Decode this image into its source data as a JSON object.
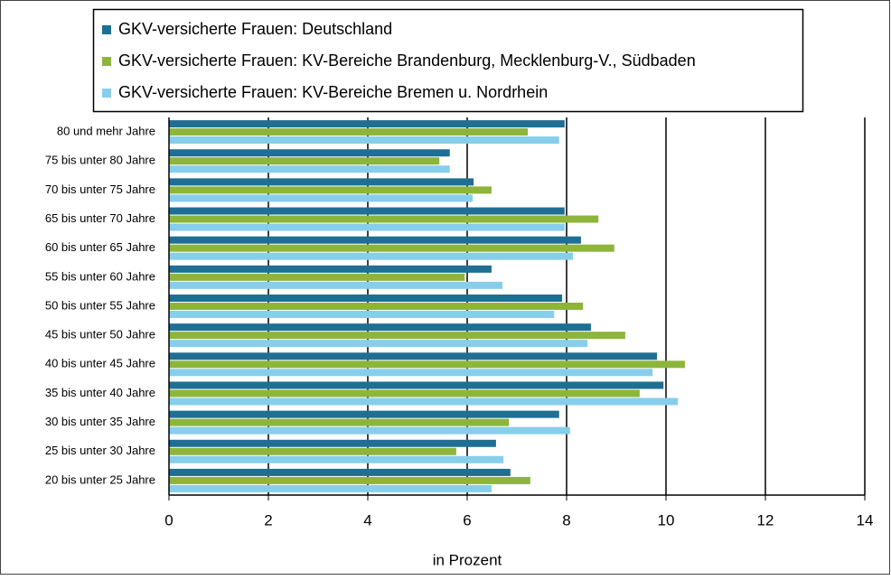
{
  "chart_data": {
    "type": "bar",
    "orientation": "horizontal",
    "x_label": "in Prozent",
    "categories": [
      "80 und mehr Jahre",
      "75 bis unter 80 Jahre",
      "70 bis unter 75 Jahre",
      "65 bis unter 70 Jahre",
      "60 bis unter 65 Jahre",
      "55 bis unter 60 Jahre",
      "50 bis unter 55 Jahre",
      "45 bis unter 50 Jahre",
      "40 bis unter 45 Jahre",
      "35 bis unter 40 Jahre",
      "30 bis unter 35 Jahre",
      "25 bis unter 30 Jahre",
      "20 bis unter 25 Jahre"
    ],
    "series": [
      {
        "name": "GKV-versicherte Frauen: Deutschland",
        "color": "#1f6f94",
        "values": [
          7.96,
          5.65,
          6.13,
          7.96,
          8.29,
          6.49,
          7.91,
          8.49,
          9.82,
          9.95,
          7.85,
          6.58,
          6.87
        ]
      },
      {
        "name": "GKV-versicherte Frauen: KV-Bereiche Brandenburg, Mecklenburg-V., Südbaden",
        "color": "#8db53c",
        "values": [
          7.22,
          5.44,
          6.49,
          8.64,
          8.96,
          5.95,
          8.33,
          9.18,
          10.38,
          9.47,
          6.84,
          5.78,
          7.27
        ]
      },
      {
        "name": "GKV-versicherte Frauen: KV-Bereiche Bremen u. Nordrhein",
        "color": "#87ceeb",
        "values": [
          7.85,
          5.65,
          6.11,
          7.96,
          8.13,
          6.71,
          7.75,
          8.42,
          9.73,
          10.24,
          8.07,
          6.73,
          6.49
        ]
      }
    ],
    "xlim": [
      0,
      14
    ],
    "xticks": [
      0,
      2,
      4,
      6,
      8,
      10,
      12,
      14
    ],
    "grid": true
  }
}
